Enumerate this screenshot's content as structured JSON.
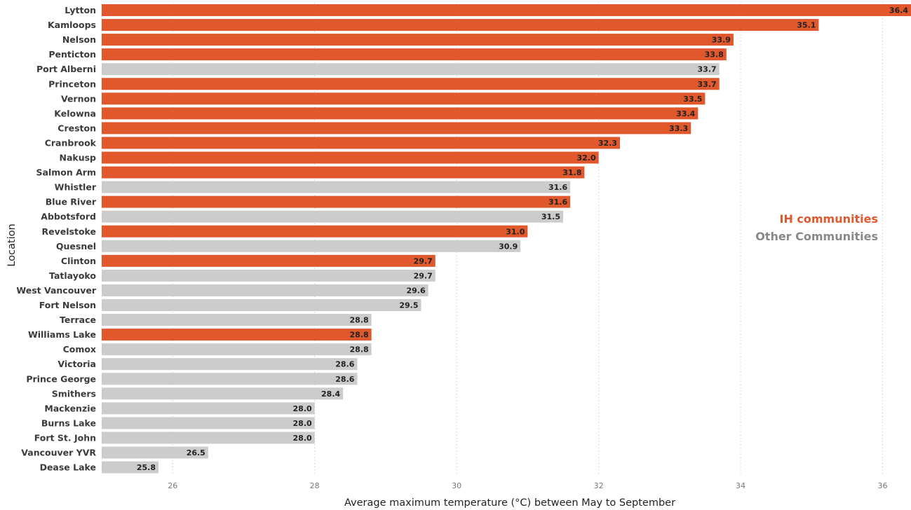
{
  "chart_data": {
    "type": "bar",
    "orientation": "horizontal",
    "title": "",
    "xlabel": "Average maximum temperature (°C) between May to September",
    "ylabel": "Location",
    "xlim": [
      25,
      36.4
    ],
    "xticks": [
      26,
      28,
      30,
      32,
      34,
      36
    ],
    "grid": "vertical-dotted",
    "legend_position": "right",
    "colors": {
      "IH communities": "#e0582c",
      "Other Communities": "#cccccc"
    },
    "series": [
      {
        "name": "IH communities",
        "color": "#e0582c"
      },
      {
        "name": "Other Communities",
        "color": "#cccccc"
      }
    ],
    "categories": [
      "Lytton",
      "Kamloops",
      "Nelson",
      "Penticton",
      "Port Alberni",
      "Princeton",
      "Vernon",
      "Kelowna",
      "Creston",
      "Cranbrook",
      "Nakusp",
      "Salmon Arm",
      "Whistler",
      "Blue River",
      "Abbotsford",
      "Revelstoke",
      "Quesnel",
      "Clinton",
      "Tatlayoko",
      "West Vancouver",
      "Fort Nelson",
      "Terrace",
      "Williams Lake",
      "Comox",
      "Victoria",
      "Prince George",
      "Smithers",
      "Mackenzie",
      "Burns Lake",
      "Fort St. John",
      "Vancouver YVR",
      "Dease Lake"
    ],
    "values": [
      36.4,
      35.1,
      33.9,
      33.8,
      33.7,
      33.7,
      33.5,
      33.4,
      33.3,
      32.3,
      32.0,
      31.8,
      31.6,
      31.6,
      31.5,
      31.0,
      30.9,
      29.7,
      29.7,
      29.6,
      29.5,
      28.8,
      28.8,
      28.8,
      28.6,
      28.6,
      28.4,
      28.0,
      28.0,
      28.0,
      26.5,
      25.8
    ],
    "value_labels": [
      "36.4",
      "35.1",
      "33.9",
      "33.8",
      "33.7",
      "33.7",
      "33.5",
      "33.4",
      "33.3",
      "32.3",
      "32.0",
      "31.8",
      "31.6",
      "31.6",
      "31.5",
      "31.0",
      "30.9",
      "29.7",
      "29.7",
      "29.6",
      "29.5",
      "28.8",
      "28.8",
      "28.8",
      "28.6",
      "28.6",
      "28.4",
      "28.0",
      "28.0",
      "28.0",
      "26.5",
      "25.8"
    ],
    "group": [
      "IH communities",
      "IH communities",
      "IH communities",
      "IH communities",
      "Other Communities",
      "IH communities",
      "IH communities",
      "IH communities",
      "IH communities",
      "IH communities",
      "IH communities",
      "IH communities",
      "Other Communities",
      "IH communities",
      "Other Communities",
      "IH communities",
      "Other Communities",
      "IH communities",
      "Other Communities",
      "Other Communities",
      "Other Communities",
      "Other Communities",
      "IH communities",
      "Other Communities",
      "Other Communities",
      "Other Communities",
      "Other Communities",
      "Other Communities",
      "Other Communities",
      "Other Communities",
      "Other Communities",
      "Other Communities"
    ]
  }
}
